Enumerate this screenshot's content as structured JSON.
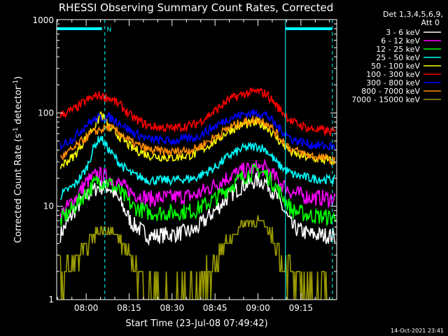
{
  "chart_data": {
    "type": "line",
    "title": "RHESSI Observing Summary Count Rates, Corrected",
    "xlabel": "Start Time (23-Jul-08 07:49:42)",
    "ylabel_main": "Corrected Count Rate (s",
    "ylabel_sup1": "-1",
    "ylabel_mid": " detector",
    "ylabel_sup2": "-1",
    "ylabel_end": ")",
    "yscale": "log",
    "ylim": [
      1,
      1000
    ],
    "y_ticks": [
      {
        "value": 1,
        "label": "1"
      },
      {
        "value": 10,
        "label": "10"
      },
      {
        "value": 100,
        "label": "100"
      },
      {
        "value": 1000,
        "label": "1000"
      }
    ],
    "xlim": [
      "07:49:42",
      "09:27:30"
    ],
    "x_ticks": [
      {
        "time": "08:00",
        "label": "08:00"
      },
      {
        "time": "08:15",
        "label": "08:15"
      },
      {
        "time": "08:30",
        "label": "08:30"
      },
      {
        "time": "08:45",
        "label": "08:45"
      },
      {
        "time": "09:00",
        "label": "09:00"
      },
      {
        "time": "09:15",
        "label": "09:15"
      }
    ],
    "legend_header": [
      "Det 1,3,4,5,6,9,",
      "Att 0"
    ],
    "legend_position": "right",
    "markers": {
      "solid_lines": [
        "07:49:42",
        "09:09:35"
      ],
      "dashed_lines": [
        "08:06:30",
        "09:26:00"
      ],
      "night_bars": [
        [
          "07:49:42",
          "08:05:30"
        ],
        [
          "09:09:35",
          "09:25:50"
        ]
      ],
      "label": "N",
      "label_time": "08:08:00",
      "color": "#00ffff"
    },
    "series": [
      {
        "name": "3 - 6 keV",
        "color": "#ffffff",
        "points": [
          [
            "07:51",
            5
          ],
          [
            "07:56",
            9
          ],
          [
            "08:00",
            13
          ],
          [
            "08:04",
            16
          ],
          [
            "08:08",
            16
          ],
          [
            "08:12",
            11
          ],
          [
            "08:16",
            6.5
          ],
          [
            "08:22",
            4.8
          ],
          [
            "08:30",
            5
          ],
          [
            "08:38",
            5.5
          ],
          [
            "08:45",
            9
          ],
          [
            "08:50",
            13
          ],
          [
            "08:55",
            17
          ],
          [
            "09:00",
            19
          ],
          [
            "09:03",
            18
          ],
          [
            "09:07",
            12
          ],
          [
            "09:12",
            6
          ],
          [
            "09:18",
            5
          ],
          [
            "09:27",
            4.8
          ]
        ]
      },
      {
        "name": "6 - 12 keV",
        "color": "#ff00ff",
        "points": [
          [
            "07:51",
            8
          ],
          [
            "07:56",
            12
          ],
          [
            "08:00",
            18
          ],
          [
            "08:04",
            22
          ],
          [
            "08:08",
            20
          ],
          [
            "08:12",
            17
          ],
          [
            "08:16",
            14
          ],
          [
            "08:22",
            12
          ],
          [
            "08:30",
            12.5
          ],
          [
            "08:38",
            13
          ],
          [
            "08:45",
            17
          ],
          [
            "08:50",
            21
          ],
          [
            "08:55",
            24
          ],
          [
            "09:00",
            26
          ],
          [
            "09:03",
            25
          ],
          [
            "09:07",
            19
          ],
          [
            "09:12",
            14
          ],
          [
            "09:18",
            12.5
          ],
          [
            "09:27",
            12
          ]
        ]
      },
      {
        "name": "12 - 25 keV",
        "color": "#00ff00",
        "points": [
          [
            "07:51",
            7
          ],
          [
            "07:56",
            10
          ],
          [
            "08:00",
            14
          ],
          [
            "08:04",
            19
          ],
          [
            "08:08",
            18
          ],
          [
            "08:12",
            14
          ],
          [
            "08:16",
            10
          ],
          [
            "08:22",
            8.5
          ],
          [
            "08:30",
            8.5
          ],
          [
            "08:38",
            9
          ],
          [
            "08:45",
            12
          ],
          [
            "08:50",
            16
          ],
          [
            "08:55",
            21
          ],
          [
            "09:00",
            24
          ],
          [
            "09:03",
            22
          ],
          [
            "09:07",
            15
          ],
          [
            "09:12",
            9
          ],
          [
            "09:18",
            8
          ],
          [
            "09:27",
            7.5
          ]
        ]
      },
      {
        "name": "25 - 50 keV",
        "color": "#00ffff",
        "points": [
          [
            "07:51",
            13
          ],
          [
            "07:56",
            17
          ],
          [
            "08:00",
            25
          ],
          [
            "08:03",
            45
          ],
          [
            "08:05",
            55
          ],
          [
            "08:08",
            40
          ],
          [
            "08:12",
            28
          ],
          [
            "08:16",
            22
          ],
          [
            "08:22",
            19
          ],
          [
            "08:30",
            19
          ],
          [
            "08:38",
            20
          ],
          [
            "08:45",
            26
          ],
          [
            "08:50",
            35
          ],
          [
            "08:55",
            42
          ],
          [
            "09:00",
            44
          ],
          [
            "09:03",
            40
          ],
          [
            "09:07",
            28
          ],
          [
            "09:12",
            22
          ],
          [
            "09:18",
            20
          ],
          [
            "09:27",
            19
          ]
        ]
      },
      {
        "name": "50 - 100 keV",
        "color": "#ffff00",
        "points": [
          [
            "07:51",
            27
          ],
          [
            "07:56",
            35
          ],
          [
            "08:00",
            55
          ],
          [
            "08:04",
            80
          ],
          [
            "08:05",
            100
          ],
          [
            "08:08",
            70
          ],
          [
            "08:12",
            55
          ],
          [
            "08:16",
            42
          ],
          [
            "08:22",
            35
          ],
          [
            "08:30",
            33
          ],
          [
            "08:38",
            36
          ],
          [
            "08:45",
            50
          ],
          [
            "08:50",
            65
          ],
          [
            "08:55",
            75
          ],
          [
            "09:00",
            78
          ],
          [
            "09:03",
            72
          ],
          [
            "09:07",
            52
          ],
          [
            "09:12",
            37
          ],
          [
            "09:18",
            33
          ],
          [
            "09:27",
            30
          ]
        ]
      },
      {
        "name": "100 - 300 keV",
        "color": "#ff0000",
        "points": [
          [
            "07:51",
            95
          ],
          [
            "07:56",
            110
          ],
          [
            "08:00",
            135
          ],
          [
            "08:04",
            155
          ],
          [
            "08:08",
            145
          ],
          [
            "08:12",
            120
          ],
          [
            "08:16",
            90
          ],
          [
            "08:22",
            72
          ],
          [
            "08:30",
            68
          ],
          [
            "08:38",
            75
          ],
          [
            "08:45",
            105
          ],
          [
            "08:50",
            140
          ],
          [
            "08:55",
            160
          ],
          [
            "09:00",
            170
          ],
          [
            "09:03",
            160
          ],
          [
            "09:07",
            115
          ],
          [
            "09:12",
            80
          ],
          [
            "09:18",
            68
          ],
          [
            "09:27",
            62
          ]
        ]
      },
      {
        "name": "300 - 800 keV",
        "color": "#0000ff",
        "points": [
          [
            "07:51",
            45
          ],
          [
            "07:56",
            55
          ],
          [
            "08:00",
            75
          ],
          [
            "08:04",
            88
          ],
          [
            "08:08",
            90
          ],
          [
            "08:12",
            78
          ],
          [
            "08:16",
            62
          ],
          [
            "08:22",
            52
          ],
          [
            "08:30",
            50
          ],
          [
            "08:38",
            54
          ],
          [
            "08:45",
            72
          ],
          [
            "08:50",
            88
          ],
          [
            "08:55",
            97
          ],
          [
            "09:00",
            100
          ],
          [
            "09:03",
            95
          ],
          [
            "09:07",
            70
          ],
          [
            "09:12",
            52
          ],
          [
            "09:18",
            46
          ],
          [
            "09:27",
            43
          ]
        ]
      },
      {
        "name": "800 - 7000 keV",
        "color": "#ff8c00",
        "points": [
          [
            "07:51",
            33
          ],
          [
            "07:56",
            42
          ],
          [
            "08:00",
            55
          ],
          [
            "08:04",
            65
          ],
          [
            "08:08",
            70
          ],
          [
            "08:12",
            60
          ],
          [
            "08:16",
            48
          ],
          [
            "08:22",
            40
          ],
          [
            "08:30",
            38
          ],
          [
            "08:38",
            41
          ],
          [
            "08:45",
            55
          ],
          [
            "08:50",
            70
          ],
          [
            "08:55",
            80
          ],
          [
            "09:00",
            85
          ],
          [
            "09:03",
            80
          ],
          [
            "09:07",
            57
          ],
          [
            "09:12",
            40
          ],
          [
            "09:18",
            35
          ],
          [
            "09:27",
            31
          ]
        ]
      },
      {
        "name": "7000 - 15000 keV",
        "color": "#999900",
        "points": [
          [
            "07:51",
            1.8
          ],
          [
            "07:55",
            2.2
          ],
          [
            "07:58",
            3
          ],
          [
            "08:01",
            4.2
          ],
          [
            "08:04",
            5.5
          ],
          [
            "08:09",
            5.5
          ],
          [
            "08:12",
            4
          ],
          [
            "08:15",
            2.8
          ],
          [
            "08:18",
            2
          ],
          [
            "08:21",
            1.6
          ],
          [
            "08:24",
            1.2
          ],
          [
            "08:30",
            1
          ],
          [
            "08:38",
            1.1
          ],
          [
            "08:42",
            1.8
          ],
          [
            "08:46",
            3
          ],
          [
            "08:50",
            4.5
          ],
          [
            "08:55",
            6.5
          ],
          [
            "09:00",
            7
          ],
          [
            "09:04",
            5.5
          ],
          [
            "09:07",
            3.5
          ],
          [
            "09:10",
            2.2
          ],
          [
            "09:14",
            1.6
          ],
          [
            "09:20",
            1.3
          ],
          [
            "09:27",
            1.1
          ]
        ]
      }
    ]
  },
  "footer": {
    "timestamp": "14-Oct-2021 23:41"
  }
}
